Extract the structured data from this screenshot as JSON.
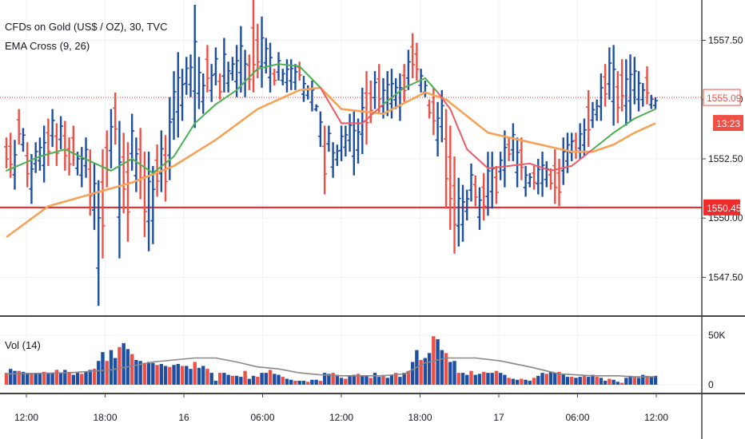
{
  "chart_data": {
    "type": "ohlc",
    "title": "CFDs on Gold (US$ / OZ), 30, TVC",
    "indicator": "EMA Cross (9, 26)",
    "volume_label": "Vol (14)",
    "price_axis": {
      "ticks": [
        "1557.50",
        "1555.00",
        "1552.50",
        "1550.00",
        "1547.50"
      ],
      "ylim": [
        1545.9,
        1559.2
      ]
    },
    "volume_axis": {
      "ticks": [
        "50K",
        "0"
      ],
      "ylim": [
        0,
        60000
      ]
    },
    "time_ticks": [
      "12:00",
      "18:00",
      "16",
      "06:00",
      "12:00",
      "18:00",
      "17",
      "06:00",
      "12:00"
    ],
    "current_price": {
      "label": "1555.09",
      "value": 1555.09,
      "countdown": "13:23"
    },
    "horizontal_line": {
      "label": "1550.45",
      "value": 1550.45
    },
    "colors": {
      "up": "#1e4fa3",
      "down": "#ef4f45",
      "ema_fast": "#4caf50",
      "ema_slow": "#f5a356",
      "ema_fast_down": "#ef5a64",
      "volume_ma": "#888888",
      "hline": "#f02020"
    },
    "bars": [
      [
        1553.4,
        1552.1
      ],
      [
        1553.6,
        1551.7
      ],
      [
        1553.3,
        1551.2
      ],
      [
        1554.6,
        1553.1
      ],
      [
        1553.8,
        1552.8
      ],
      [
        1553.2,
        1551.3
      ],
      [
        1552.7,
        1550.6
      ],
      [
        1553.2,
        1551.9
      ],
      [
        1553.4,
        1552.0
      ],
      [
        1553.9,
        1551.5
      ],
      [
        1554.2,
        1552.2
      ],
      [
        1554.6,
        1553.0
      ],
      [
        1554.0,
        1552.2
      ],
      [
        1554.3,
        1552.9
      ],
      [
        1554.1,
        1552.0
      ],
      [
        1553.4,
        1551.8
      ],
      [
        1553.9,
        1552.2
      ],
      [
        1552.8,
        1551.8
      ],
      [
        1553.0,
        1551.3
      ],
      [
        1553.4,
        1551.7
      ],
      [
        1552.9,
        1550.1
      ],
      [
        1552.3,
        1549.5
      ],
      [
        1551.6,
        1546.3
      ],
      [
        1552.9,
        1548.3
      ],
      [
        1553.7,
        1551.3
      ],
      [
        1554.6,
        1552.1
      ],
      [
        1555.3,
        1553.1
      ],
      [
        1554.1,
        1548.3
      ],
      [
        1553.6,
        1550.2
      ],
      [
        1553.2,
        1549.0
      ],
      [
        1554.4,
        1552.0
      ],
      [
        1553.4,
        1551.1
      ],
      [
        1553.8,
        1550.8
      ],
      [
        1552.8,
        1549.2
      ],
      [
        1552.8,
        1548.6
      ],
      [
        1552.2,
        1548.9
      ],
      [
        1553.1,
        1550.9
      ],
      [
        1553.7,
        1551.1
      ],
      [
        1553.5,
        1550.7
      ],
      [
        1555.1,
        1551.6
      ],
      [
        1556.2,
        1553.3
      ],
      [
        1557.0,
        1553.4
      ],
      [
        1556.3,
        1554.1
      ],
      [
        1556.8,
        1555.2
      ],
      [
        1556.9,
        1555.1
      ],
      [
        1559.0,
        1553.8
      ],
      [
        1556.8,
        1554.6
      ],
      [
        1556.1,
        1554.4
      ],
      [
        1557.3,
        1555.3
      ],
      [
        1556.5,
        1554.9
      ],
      [
        1557.2,
        1555.6
      ],
      [
        1556.1,
        1555.0
      ],
      [
        1557.6,
        1555.3
      ],
      [
        1556.6,
        1555.3
      ],
      [
        1556.8,
        1555.8
      ],
      [
        1557.3,
        1555.1
      ],
      [
        1558.1,
        1555.3
      ],
      [
        1557.1,
        1555.1
      ],
      [
        1556.9,
        1555.4
      ],
      [
        1559.2,
        1555.3
      ],
      [
        1558.2,
        1555.9
      ],
      [
        1558.5,
        1555.5
      ],
      [
        1557.6,
        1556.1
      ],
      [
        1557.4,
        1555.3
      ],
      [
        1556.3,
        1555.6
      ],
      [
        1557.0,
        1555.8
      ],
      [
        1556.3,
        1555.6
      ],
      [
        1556.7,
        1555.3
      ],
      [
        1556.7,
        1555.4
      ],
      [
        1556.5,
        1555.4
      ],
      [
        1556.6,
        1555.8
      ],
      [
        1556.0,
        1554.9
      ],
      [
        1555.6,
        1555.0
      ],
      [
        1555.8,
        1554.5
      ],
      [
        1554.8,
        1554.5
      ],
      [
        1554.5,
        1553.0
      ],
      [
        1553.9,
        1551.0
      ],
      [
        1553.9,
        1552.8
      ],
      [
        1553.2,
        1551.7
      ],
      [
        1553.1,
        1552.2
      ],
      [
        1553.9,
        1552.4
      ],
      [
        1553.9,
        1552.6
      ],
      [
        1554.4,
        1552.8
      ],
      [
        1554.5,
        1551.8
      ],
      [
        1554.2,
        1552.3
      ],
      [
        1555.5,
        1552.7
      ],
      [
        1556.2,
        1553.1
      ],
      [
        1555.8,
        1554.0
      ],
      [
        1556.2,
        1554.6
      ],
      [
        1556.5,
        1554.4
      ],
      [
        1555.9,
        1554.2
      ],
      [
        1556.2,
        1554.3
      ],
      [
        1556.3,
        1554.2
      ],
      [
        1555.9,
        1554.6
      ],
      [
        1556.1,
        1554.1
      ],
      [
        1556.5,
        1554.9
      ],
      [
        1557.1,
        1555.4
      ],
      [
        1557.8,
        1555.9
      ],
      [
        1557.4,
        1555.8
      ],
      [
        1556.3,
        1555.3
      ],
      [
        1555.8,
        1555.1
      ],
      [
        1555.0,
        1554.2
      ],
      [
        1555.5,
        1553.5
      ],
      [
        1554.9,
        1552.6
      ],
      [
        1555.4,
        1553.2
      ],
      [
        1554.6,
        1550.4
      ],
      [
        1553.9,
        1549.5
      ],
      [
        1552.6,
        1548.5
      ],
      [
        1551.7,
        1548.8
      ],
      [
        1551.4,
        1549.0
      ],
      [
        1551.2,
        1549.9
      ],
      [
        1552.3,
        1550.7
      ],
      [
        1551.8,
        1550.5
      ],
      [
        1551.3,
        1549.5
      ],
      [
        1551.9,
        1549.9
      ],
      [
        1552.8,
        1550.1
      ],
      [
        1552.8,
        1550.4
      ],
      [
        1552.2,
        1550.6
      ],
      [
        1552.8,
        1551.6
      ],
      [
        1553.7,
        1551.3
      ],
      [
        1553.4,
        1552.4
      ],
      [
        1554.0,
        1552.4
      ],
      [
        1553.4,
        1551.3
      ],
      [
        1553.4,
        1551.6
      ],
      [
        1552.2,
        1550.9
      ],
      [
        1551.9,
        1551.3
      ],
      [
        1552.2,
        1551.2
      ],
      [
        1552.5,
        1551.0
      ],
      [
        1552.8,
        1550.9
      ],
      [
        1552.4,
        1551.3
      ],
      [
        1552.1,
        1551.2
      ],
      [
        1552.9,
        1550.6
      ],
      [
        1552.5,
        1550.5
      ],
      [
        1553.4,
        1551.4
      ],
      [
        1553.6,
        1551.9
      ],
      [
        1553.6,
        1552.4
      ],
      [
        1553.6,
        1552.5
      ],
      [
        1554.0,
        1552.5
      ],
      [
        1554.2,
        1552.6
      ],
      [
        1555.4,
        1553.0
      ],
      [
        1554.9,
        1553.8
      ],
      [
        1555.0,
        1554.1
      ],
      [
        1556.1,
        1554.1
      ],
      [
        1556.5,
        1554.7
      ],
      [
        1557.2,
        1555.0
      ],
      [
        1557.3,
        1553.9
      ],
      [
        1556.2,
        1554.0
      ],
      [
        1556.7,
        1554.5
      ],
      [
        1556.7,
        1553.9
      ],
      [
        1556.9,
        1554.1
      ],
      [
        1556.8,
        1554.8
      ],
      [
        1556.2,
        1554.5
      ],
      [
        1555.7,
        1554.7
      ],
      [
        1556.4,
        1554.8
      ],
      [
        1555.2,
        1554.6
      ],
      [
        1555.1,
        1554.6
      ]
    ],
    "ema_fast": [
      [
        0,
        1552.0
      ],
      [
        8,
        1552.6
      ],
      [
        14,
        1552.9
      ],
      [
        20,
        1552.4
      ],
      [
        25,
        1552.0
      ],
      [
        30,
        1552.5
      ],
      [
        35,
        1551.9
      ],
      [
        40,
        1552.6
      ],
      [
        45,
        1554.0
      ],
      [
        50,
        1554.8
      ],
      [
        55,
        1555.4
      ],
      [
        60,
        1556.3
      ],
      [
        65,
        1556.5
      ],
      [
        70,
        1556.4
      ],
      [
        75,
        1555.5
      ],
      [
        80,
        1554.0
      ],
      [
        85,
        1554.0
      ],
      [
        90,
        1554.8
      ],
      [
        95,
        1555.5
      ],
      [
        100,
        1555.9
      ],
      [
        103,
        1555.3
      ],
      [
        106,
        1554.6
      ],
      [
        110,
        1552.9
      ],
      [
        115,
        1552.1
      ],
      [
        120,
        1552.2
      ],
      [
        125,
        1552.3
      ],
      [
        130,
        1552.0
      ],
      [
        135,
        1552.2
      ],
      [
        140,
        1552.9
      ],
      [
        145,
        1553.6
      ],
      [
        150,
        1554.2
      ],
      [
        155,
        1554.6
      ]
    ],
    "ema_slow": [
      [
        0,
        1549.2
      ],
      [
        10,
        1550.5
      ],
      [
        20,
        1551.0
      ],
      [
        30,
        1551.5
      ],
      [
        40,
        1552.2
      ],
      [
        50,
        1553.3
      ],
      [
        60,
        1554.6
      ],
      [
        70,
        1555.4
      ],
      [
        75,
        1555.5
      ],
      [
        80,
        1554.6
      ],
      [
        90,
        1554.4
      ],
      [
        100,
        1555.3
      ],
      [
        105,
        1555.0
      ],
      [
        110,
        1554.3
      ],
      [
        115,
        1553.6
      ],
      [
        125,
        1553.2
      ],
      [
        135,
        1552.8
      ],
      [
        140,
        1552.8
      ],
      [
        145,
        1553.1
      ],
      [
        150,
        1553.6
      ],
      [
        155,
        1554.0
      ]
    ],
    "volume": [
      12000,
      16000,
      14000,
      14000,
      13000,
      12000,
      11000,
      11000,
      11000,
      13000,
      12000,
      12000,
      15000,
      12000,
      15000,
      13000,
      10000,
      12000,
      11000,
      13000,
      15000,
      16000,
      24000,
      33000,
      24000,
      35000,
      27000,
      38000,
      42000,
      36000,
      31000,
      25000,
      24000,
      22000,
      23000,
      22000,
      20000,
      21000,
      19000,
      18000,
      20000,
      21000,
      19000,
      19000,
      16000,
      23000,
      17000,
      19000,
      16000,
      12000,
      4000,
      12000,
      12000,
      10000,
      9000,
      9000,
      8000,
      14000,
      6000,
      9000,
      8000,
      12000,
      12000,
      15000,
      11000,
      10000,
      8000,
      6000,
      5000,
      4000,
      4000,
      4000,
      3000,
      5000,
      5000,
      4000,
      12000,
      11000,
      12000,
      10000,
      7000,
      6000,
      9000,
      10000,
      11000,
      9000,
      9000,
      7000,
      12000,
      8000,
      10000,
      7000,
      10000,
      12000,
      8000,
      12000,
      14000,
      23000,
      35000,
      25000,
      27000,
      32000,
      49000,
      46000,
      35000,
      32000,
      23000,
      24000,
      12000,
      12000,
      10000,
      14000,
      10000,
      11000,
      13000,
      12000,
      12000,
      14000,
      12000,
      10000,
      7000,
      6000,
      5000,
      6000,
      5000,
      4000,
      7000,
      9000,
      12000,
      11000,
      13000,
      12000,
      13000,
      11000,
      8000,
      8000,
      7000,
      8000,
      10000,
      8000,
      10000,
      8000,
      7000,
      4000,
      6000,
      5000,
      3000,
      2000,
      7000,
      9000,
      8000,
      7000,
      10000,
      9000,
      8000,
      9000
    ],
    "volume_ma": [
      [
        0,
        11000
      ],
      [
        15,
        12000
      ],
      [
        25,
        15000
      ],
      [
        35,
        23000
      ],
      [
        45,
        27000
      ],
      [
        50,
        27000
      ],
      [
        55,
        23000
      ],
      [
        60,
        18000
      ],
      [
        65,
        16000
      ],
      [
        70,
        12000
      ],
      [
        75,
        10000
      ],
      [
        80,
        9000
      ],
      [
        90,
        9000
      ],
      [
        95,
        11000
      ],
      [
        100,
        22000
      ],
      [
        105,
        27000
      ],
      [
        112,
        27000
      ],
      [
        118,
        24000
      ],
      [
        125,
        18000
      ],
      [
        132,
        11000
      ],
      [
        140,
        9000
      ],
      [
        146,
        9000
      ],
      [
        150,
        8000
      ],
      [
        155,
        8000
      ]
    ]
  }
}
